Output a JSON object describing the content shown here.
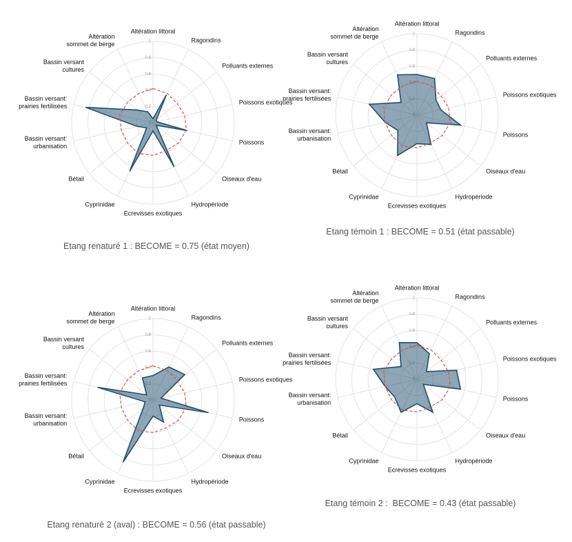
{
  "chart_data": [
    {
      "type": "radar",
      "caption": "Etang renaturé 1 : BECOME = 0.75 (état moyen)",
      "categories": [
        "Altération littoral",
        "Ragondins",
        "Polluants externes",
        "Poissons exotiques",
        "Poissons",
        "Oiseaux d'eau",
        "Hydropériode",
        "Ecrevisses exotiques",
        "Cyprinidae",
        "Bétail",
        "Bassin versant:\nurbanisation",
        "Bassin versant:\nprairies fertilisées",
        "Bassin versant\ncultures",
        "Altération\nsommet de berge"
      ],
      "series": [
        {
          "color": "#1f4e6e",
          "values": [
            0.05,
            0.38,
            0.05,
            0.05,
            0.43,
            0.05,
            0.6,
            0.1,
            0.66,
            0.1,
            0.2,
            0.85,
            0.25,
            0.15
          ]
        },
        {
          "color": "#d9534f",
          "dashed": true,
          "values": [
            0.42,
            0.4,
            0.38,
            0.4,
            0.42,
            0.4,
            0.38,
            0.4,
            0.42,
            0.4,
            0.4,
            0.42,
            0.4,
            0.4
          ]
        }
      ],
      "rlim": [
        0,
        1
      ],
      "rticks": [
        0,
        0.2,
        0.4,
        0.6,
        0.8,
        1
      ],
      "grid": true
    },
    {
      "type": "radar",
      "caption": "Etang témoin 1 : BECOME = 0.51 (état passable)",
      "categories": [
        "Altération littoral",
        "Ragondins",
        "Polluants externes",
        "Poissons exotiques",
        "Poissons",
        "Oiseaux d'eau",
        "Hydropériode",
        "Ecrevisses exotiques",
        "Cyprinidae",
        "Bétail",
        "Bassin versant:\nurbanisation",
        "Bassin versant:\nprairies fertilisées",
        "Bassin versant\ncultures",
        "Altération\nsommet de berge"
      ],
      "series": [
        {
          "color": "#1f4e6e",
          "values": [
            0.5,
            0.5,
            0.3,
            0.3,
            0.55,
            0.15,
            0.4,
            0.35,
            0.55,
            0.3,
            0.4,
            0.6,
            0.25,
            0.55
          ]
        },
        {
          "color": "#d9534f",
          "dashed": true,
          "values": [
            0.42,
            0.4,
            0.38,
            0.4,
            0.42,
            0.4,
            0.38,
            0.4,
            0.42,
            0.4,
            0.4,
            0.42,
            0.4,
            0.4
          ]
        }
      ],
      "rlim": [
        0,
        1
      ],
      "rticks": [
        0,
        0.2,
        0.4,
        0.6,
        0.8,
        1
      ],
      "grid": true
    },
    {
      "type": "radar",
      "caption": "Etang renaturé 2 (aval) : BECOME = 0.56 (état passable)",
      "categories": [
        "Altération littoral",
        "Ragondins",
        "Polluants externes",
        "Poissons exotiques",
        "Poissons",
        "Oiseaux d'eau",
        "Hydropériode",
        "Ecrevisses exotiques",
        "Cyprinidae",
        "Bétail",
        "Bassin versant:\nurbanisation",
        "Bassin versant:\nprairies fertilisées",
        "Bassin versant\ncultures",
        "Altération\nsommet de berge"
      ],
      "series": [
        {
          "color": "#1f4e6e",
          "values": [
            0.3,
            0.45,
            0.5,
            0.1,
            0.7,
            0.1,
            0.3,
            0.2,
            0.85,
            0.15,
            0.1,
            0.7,
            0.1,
            0.3
          ]
        },
        {
          "color": "#d9534f",
          "dashed": true,
          "values": [
            0.42,
            0.4,
            0.38,
            0.4,
            0.42,
            0.4,
            0.38,
            0.4,
            0.42,
            0.4,
            0.4,
            0.42,
            0.4,
            0.4
          ]
        }
      ],
      "rlim": [
        0,
        1
      ],
      "rticks": [
        0,
        0.2,
        0.4,
        0.6,
        0.8,
        1
      ],
      "grid": true
    },
    {
      "type": "radar",
      "caption": "Etang témoin 2 :  BECOME = 0.43 (état passable)",
      "categories": [
        "Altération littoral",
        "Ragondins",
        "Polluants externes",
        "Poissons exotiques",
        "Poissons",
        "Oiseaux d'eau",
        "Hydropériode",
        "Ecrevisses exotiques",
        "Cyprinidae",
        "Bétail",
        "Bassin versant:\nurbanisation",
        "Bassin versant:\nprairies fertilisées",
        "Bassin versant\ncultures",
        "Altération\nsommet de berge"
      ],
      "series": [
        {
          "color": "#1f4e6e",
          "values": [
            0.45,
            0.35,
            0.15,
            0.5,
            0.55,
            0.1,
            0.45,
            0.3,
            0.45,
            0.35,
            0.4,
            0.55,
            0.25,
            0.5
          ]
        },
        {
          "color": "#d9534f",
          "dashed": true,
          "values": [
            0.42,
            0.4,
            0.38,
            0.4,
            0.42,
            0.4,
            0.38,
            0.4,
            0.42,
            0.4,
            0.4,
            0.42,
            0.4,
            0.4
          ]
        }
      ],
      "rlim": [
        0,
        1
      ],
      "rticks": [
        0,
        0.2,
        0.4,
        0.6,
        0.8,
        1
      ],
      "grid": true
    }
  ]
}
